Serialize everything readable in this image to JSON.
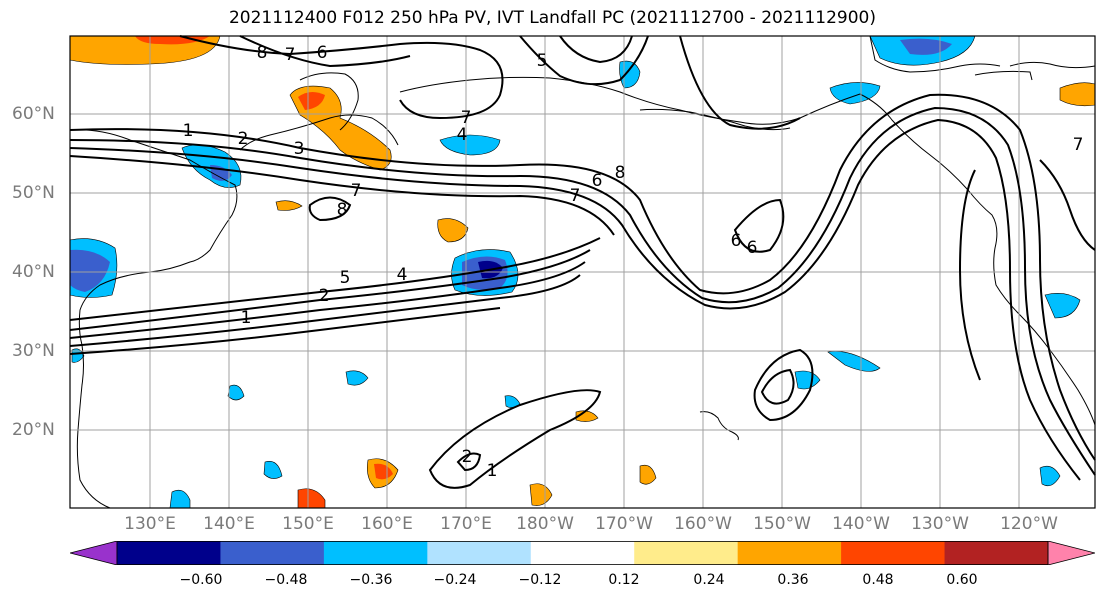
{
  "title": "2021112400 F012 250 hPa PV, IVT Landfall PC (2021112700 - 2021112900)",
  "map": {
    "projection": "PlateCarree",
    "lat_ticks": [
      "60°N",
      "50°N",
      "40°N",
      "30°N",
      "20°N"
    ],
    "lon_ticks": [
      "130°E",
      "140°E",
      "150°E",
      "160°E",
      "170°E",
      "180°W",
      "170°W",
      "160°W",
      "150°W",
      "140°W",
      "130°W",
      "120°W"
    ],
    "grid": true,
    "contour_labels": [
      "8",
      "7",
      "6",
      "1",
      "2",
      "3",
      "4",
      "5",
      "7",
      "4",
      "8",
      "7",
      "8",
      "6",
      "5",
      "7",
      "2",
      "1",
      "2",
      "1",
      "6",
      "6",
      "7"
    ]
  },
  "colorbar": {
    "labels": [
      "−0.60",
      "−0.48",
      "−0.36",
      "−0.24",
      "−0.12",
      "0.12",
      "0.24",
      "0.36",
      "0.48",
      "0.60"
    ],
    "colors": [
      "#9932cc",
      "#00008b",
      "#3a5fcd",
      "#00bfff",
      "#b0e2ff",
      "#ffffff",
      "#ffec8b",
      "#ffa500",
      "#ff4500",
      "#b22222",
      "#ff82ab"
    ]
  }
}
